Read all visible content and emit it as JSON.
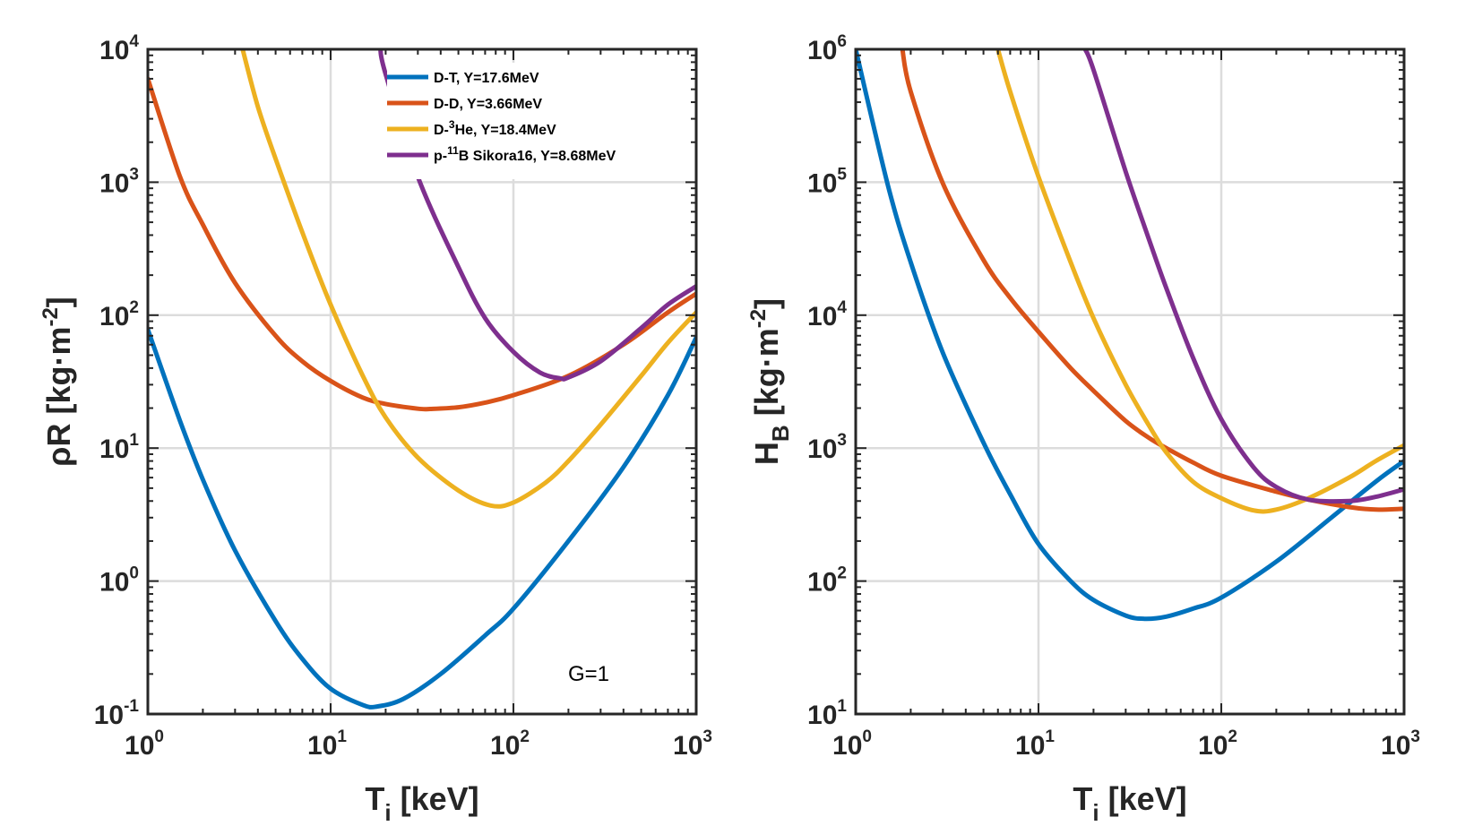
{
  "chart_data": [
    {
      "type": "line",
      "id": "left",
      "xscale": "log",
      "yscale": "log",
      "xlim": [
        1,
        1000
      ],
      "ylim": [
        0.1,
        10000
      ],
      "grid": true,
      "xlabel": {
        "main": "T",
        "sub": "i",
        "rest": " [keV]"
      },
      "ylabel": {
        "main": "ρR [kg·m",
        "sup": "-2",
        "rest": "]"
      },
      "xticks": [
        {
          "value": 1,
          "base": "10",
          "exp": "0"
        },
        {
          "value": 10,
          "base": "10",
          "exp": "1"
        },
        {
          "value": 100,
          "base": "10",
          "exp": "2"
        },
        {
          "value": 1000,
          "base": "10",
          "exp": "3"
        }
      ],
      "yticks": [
        {
          "value": 0.1,
          "base": "10",
          "exp": "-1"
        },
        {
          "value": 1,
          "base": "10",
          "exp": "0"
        },
        {
          "value": 10,
          "base": "10",
          "exp": "1"
        },
        {
          "value": 100,
          "base": "10",
          "exp": "2"
        },
        {
          "value": 1000,
          "base": "10",
          "exp": "3"
        },
        {
          "value": 10000,
          "base": "10",
          "exp": "4"
        }
      ],
      "annotation": "G=1",
      "legend": {
        "position": "top-center",
        "entries": [
          {
            "name": "dt",
            "parts": [
              {
                "t": "D-T, Y=17.6MeV"
              }
            ]
          },
          {
            "name": "dd",
            "parts": [
              {
                "t": "D-D, Y=3.66MeV"
              }
            ]
          },
          {
            "name": "dhe3",
            "parts": [
              {
                "t": "D-"
              },
              {
                "t": "3",
                "sup": true
              },
              {
                "t": "He, Y=18.4MeV"
              }
            ]
          },
          {
            "name": "pb11",
            "parts": [
              {
                "t": "p-"
              },
              {
                "t": "11",
                "sup": true
              },
              {
                "t": "B Sikora16, Y=8.68MeV"
              }
            ]
          }
        ]
      },
      "series": [
        {
          "name": "dt",
          "color": "#0072BD",
          "x": [
            1,
            1.5,
            2,
            3,
            5,
            7,
            10,
            15,
            18,
            25,
            40,
            70,
            100,
            200,
            400,
            700,
            1000
          ],
          "y": [
            78,
            16,
            5.8,
            1.7,
            0.5,
            0.26,
            0.155,
            0.117,
            0.114,
            0.13,
            0.2,
            0.39,
            0.62,
            2.0,
            7.2,
            25,
            68
          ]
        },
        {
          "name": "dd",
          "color": "#D95319",
          "x": [
            1,
            1.5,
            2,
            3,
            5,
            7,
            10,
            15,
            20,
            30,
            35,
            50,
            70,
            100,
            200,
            400,
            700,
            1000
          ],
          "y": [
            6000,
            1100,
            480,
            175,
            70,
            45,
            32,
            24,
            21.5,
            19.8,
            19.7,
            20.3,
            22,
            25,
            35,
            60,
            105,
            145
          ]
        },
        {
          "name": "dhe3",
          "color": "#EDB120",
          "x": [
            3.3,
            4,
            5,
            7,
            10,
            15,
            20,
            30,
            50,
            75,
            100,
            150,
            200,
            300,
            500,
            700,
            1000
          ],
          "y": [
            10000,
            3700,
            1500,
            420,
            120,
            35,
            17,
            8.5,
            4.8,
            3.7,
            3.9,
            5.5,
            8,
            15,
            35,
            62,
            105
          ]
        },
        {
          "name": "pb11",
          "color": "#7E2F8E",
          "x": [
            18.7,
            20,
            30,
            50,
            70,
            100,
            140,
            180,
            200,
            300,
            500,
            700,
            1000
          ],
          "y": [
            10000,
            6500,
            1100,
            230,
            95,
            53,
            37,
            33.5,
            34,
            45,
            80,
            120,
            165
          ]
        }
      ]
    },
    {
      "type": "line",
      "id": "right",
      "xscale": "log",
      "yscale": "log",
      "xlim": [
        1,
        1000
      ],
      "ylim": [
        10,
        1000000
      ],
      "grid": true,
      "xlabel": {
        "main": "T",
        "sub": "i",
        "rest": " [keV]"
      },
      "ylabel": {
        "main": "H",
        "sub": "B",
        "mid": "  [kg·m",
        "sup": "-2",
        "rest": "]"
      },
      "xticks": [
        {
          "value": 1,
          "base": "10",
          "exp": "0"
        },
        {
          "value": 10,
          "base": "10",
          "exp": "1"
        },
        {
          "value": 100,
          "base": "10",
          "exp": "2"
        },
        {
          "value": 1000,
          "base": "10",
          "exp": "3"
        }
      ],
      "yticks": [
        {
          "value": 10,
          "base": "10",
          "exp": "1"
        },
        {
          "value": 100,
          "base": "10",
          "exp": "2"
        },
        {
          "value": 1000,
          "base": "10",
          "exp": "3"
        },
        {
          "value": 10000,
          "base": "10",
          "exp": "4"
        },
        {
          "value": 100000,
          "base": "10",
          "exp": "5"
        },
        {
          "value": 1000000,
          "base": "10",
          "exp": "6"
        }
      ],
      "series": [
        {
          "name": "dt",
          "color": "#0072BD",
          "x": [
            1,
            1.5,
            2,
            3,
            5,
            7,
            10,
            15,
            20,
            30,
            38,
            50,
            70,
            100,
            200,
            400,
            700,
            1000
          ],
          "y": [
            1000000,
            95000,
            25000,
            5200,
            1100,
            450,
            190,
            100,
            72,
            55,
            52,
            54,
            62,
            75,
            140,
            300,
            560,
            800
          ]
        },
        {
          "name": "dd",
          "color": "#D95319",
          "x": [
            1.8,
            2,
            3,
            5,
            7,
            10,
            15,
            20,
            30,
            40,
            50,
            70,
            100,
            200,
            300,
            500,
            700,
            1000
          ],
          "y": [
            1000000,
            480000,
            98000,
            26000,
            13500,
            7500,
            4000,
            2700,
            1600,
            1200,
            1000,
            780,
            620,
            470,
            410,
            360,
            345,
            350
          ]
        },
        {
          "name": "dhe3",
          "color": "#EDB120",
          "x": [
            6,
            7,
            10,
            15,
            20,
            30,
            40,
            50,
            70,
            100,
            150,
            200,
            300,
            500,
            700,
            1000
          ],
          "y": [
            1000000,
            480000,
            110000,
            25000,
            9500,
            3000,
            1500,
            930,
            560,
            420,
            340,
            345,
            420,
            600,
            800,
            1050
          ]
        },
        {
          "name": "pb11",
          "color": "#7E2F8E",
          "x": [
            18,
            20,
            30,
            40,
            50,
            70,
            100,
            150,
            200,
            300,
            500,
            700,
            1000
          ],
          "y": [
            1000000,
            700000,
            120000,
            38000,
            16000,
            4800,
            1650,
            720,
            510,
            410,
            400,
            430,
            490
          ]
        }
      ]
    }
  ]
}
